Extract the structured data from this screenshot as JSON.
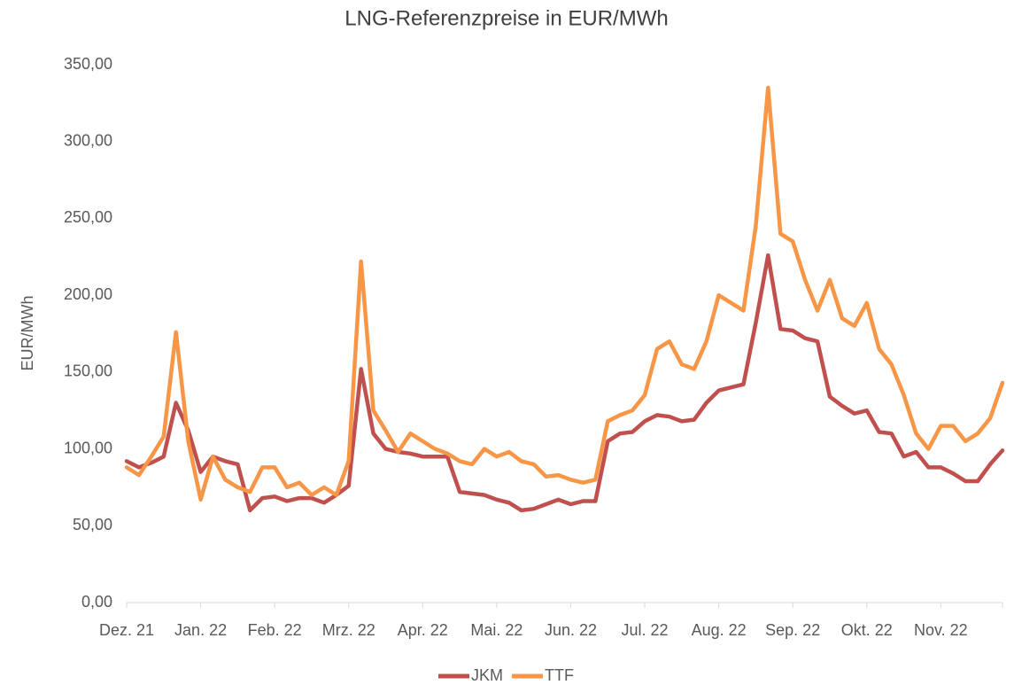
{
  "chart_data": {
    "type": "line",
    "title": "LNG-Referenzpreise in EUR/MWh",
    "y_label": "EUR/MWh",
    "categories": [
      "Dez. 21",
      null,
      null,
      null,
      null,
      null,
      "Jan. 22",
      null,
      null,
      null,
      null,
      null,
      "Feb. 22",
      null,
      null,
      null,
      null,
      null,
      "Mrz. 22",
      null,
      null,
      null,
      null,
      null,
      "Apr. 22",
      null,
      null,
      null,
      null,
      null,
      "Mai. 22",
      null,
      null,
      null,
      null,
      null,
      "Jun. 22",
      null,
      null,
      null,
      null,
      null,
      "Jul. 22",
      null,
      null,
      null,
      null,
      null,
      "Aug. 22",
      null,
      null,
      null,
      null,
      null,
      "Sep. 22",
      null,
      null,
      null,
      null,
      null,
      "Okt. 22",
      null,
      null,
      null,
      null,
      null,
      "Nov. 22",
      null,
      null,
      null,
      null,
      null
    ],
    "series": [
      {
        "name": "JKM",
        "color": "#c0504d",
        "values": [
          92,
          88,
          91,
          95,
          130,
          112,
          85,
          95,
          92,
          90,
          60,
          68,
          69,
          66,
          68,
          68,
          65,
          70,
          76,
          152,
          110,
          100,
          98,
          97,
          95,
          95,
          95,
          72,
          71,
          70,
          67,
          65,
          60,
          61,
          64,
          67,
          64,
          66,
          66,
          105,
          110,
          111,
          118,
          122,
          121,
          118,
          119,
          130,
          138,
          140,
          142,
          182,
          226,
          178,
          177,
          172,
          170,
          134,
          128,
          123,
          125,
          111,
          110,
          95,
          98,
          88,
          88,
          84,
          79,
          79,
          90,
          99
        ]
      },
      {
        "name": "TTF",
        "color": "#f79646",
        "values": [
          88,
          83,
          95,
          108,
          176,
          105,
          67,
          95,
          80,
          75,
          72,
          88,
          88,
          75,
          78,
          70,
          75,
          70,
          92,
          222,
          125,
          112,
          98,
          110,
          105,
          100,
          97,
          92,
          90,
          100,
          95,
          98,
          92,
          90,
          82,
          83,
          80,
          78,
          80,
          118,
          122,
          125,
          135,
          165,
          170,
          155,
          152,
          170,
          200,
          195,
          190,
          245,
          335,
          240,
          235,
          210,
          190,
          210,
          185,
          180,
          195,
          165,
          155,
          135,
          110,
          100,
          115,
          115,
          105,
          110,
          120,
          143
        ]
      }
    ],
    "ylim": [
      0,
      350
    ],
    "yticks": [
      {
        "value": 0,
        "label": "0,00"
      },
      {
        "value": 50,
        "label": "50,00"
      },
      {
        "value": 100,
        "label": "100,00"
      },
      {
        "value": 150,
        "label": "150,00"
      },
      {
        "value": 200,
        "label": "200,00"
      },
      {
        "value": 250,
        "label": "250,00"
      },
      {
        "value": 300,
        "label": "300,00"
      },
      {
        "value": 350,
        "label": "350,00"
      }
    ],
    "grid": false,
    "legend": "bottom"
  }
}
